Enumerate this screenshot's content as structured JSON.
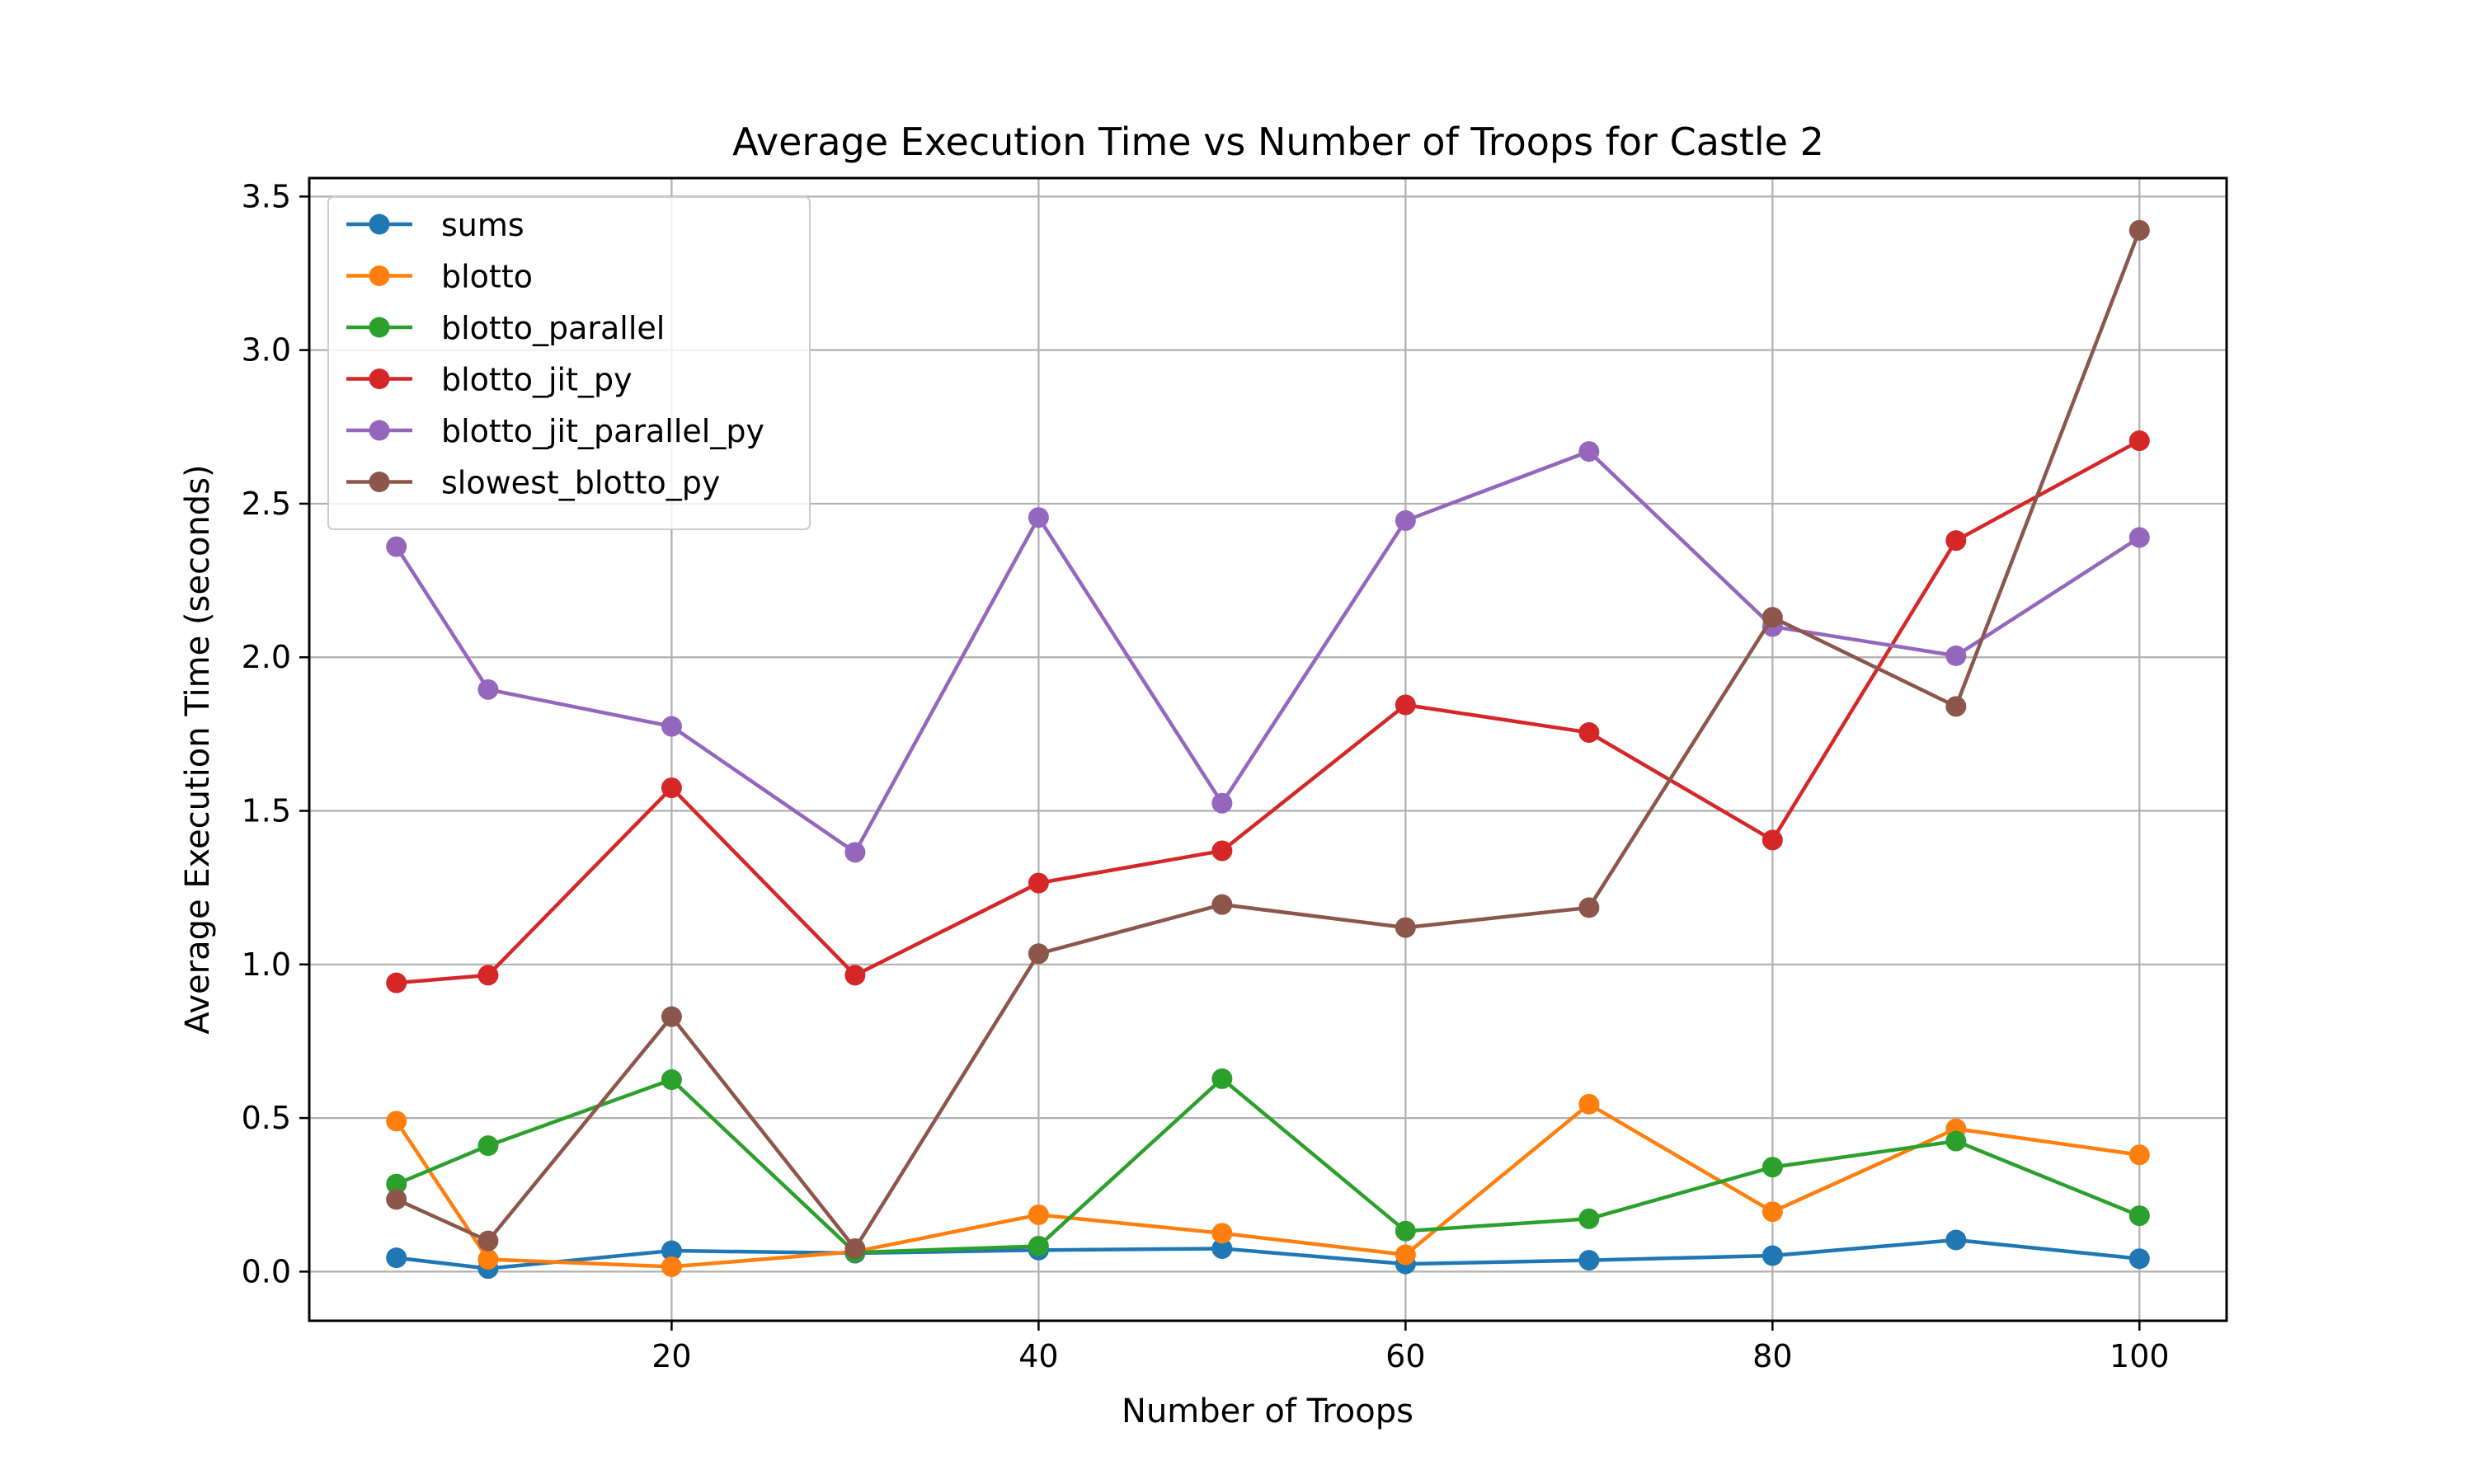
{
  "chart_data": {
    "type": "line",
    "title": "Average Execution Time vs Number of Troops for Castle 2",
    "xlabel": "Number of Troops",
    "ylabel": "Average Execution Time (seconds)",
    "xlim": [
      0.25,
      104.75
    ],
    "ylim": [
      -0.16,
      3.56
    ],
    "xticks": [
      20,
      40,
      60,
      80,
      100
    ],
    "xtick_labels": [
      "20",
      "40",
      "60",
      "80",
      "100"
    ],
    "yticks": [
      0.0,
      0.5,
      1.0,
      1.5,
      2.0,
      2.5,
      3.0,
      3.5
    ],
    "ytick_labels": [
      "0.0",
      "0.5",
      "1.0",
      "1.5",
      "2.0",
      "2.5",
      "3.0",
      "3.5"
    ],
    "grid": true,
    "legend_position": "top-left",
    "x": [
      5,
      10,
      20,
      30,
      40,
      50,
      60,
      70,
      80,
      90,
      100
    ],
    "series": [
      {
        "name": "sums",
        "color": "#1f77b4",
        "values": [
          0.045,
          0.01,
          0.068,
          0.06,
          0.07,
          0.075,
          0.025,
          0.037,
          0.052,
          0.103,
          0.042
        ]
      },
      {
        "name": "blotto",
        "color": "#ff7f0e",
        "values": [
          0.49,
          0.04,
          0.016,
          0.065,
          0.185,
          0.125,
          0.055,
          0.545,
          0.195,
          0.465,
          0.38
        ]
      },
      {
        "name": "blotto_parallel",
        "color": "#2ca02c",
        "values": [
          0.285,
          0.41,
          0.625,
          0.062,
          0.083,
          0.628,
          0.132,
          0.172,
          0.34,
          0.425,
          0.182
        ]
      },
      {
        "name": "blotto_jit_py",
        "color": "#d62728",
        "values": [
          0.94,
          0.965,
          1.575,
          0.965,
          1.265,
          1.37,
          1.845,
          1.755,
          1.405,
          2.38,
          2.705
        ]
      },
      {
        "name": "blotto_jit_parallel_py",
        "color": "#9467bd",
        "values": [
          2.36,
          1.895,
          1.775,
          1.365,
          2.455,
          1.525,
          2.445,
          2.67,
          2.1,
          2.005,
          2.39
        ]
      },
      {
        "name": "slowest_blotto_py",
        "color": "#8c564b",
        "values": [
          0.235,
          0.1,
          0.83,
          0.075,
          1.035,
          1.195,
          1.12,
          1.185,
          2.13,
          1.84,
          3.39
        ]
      }
    ]
  }
}
